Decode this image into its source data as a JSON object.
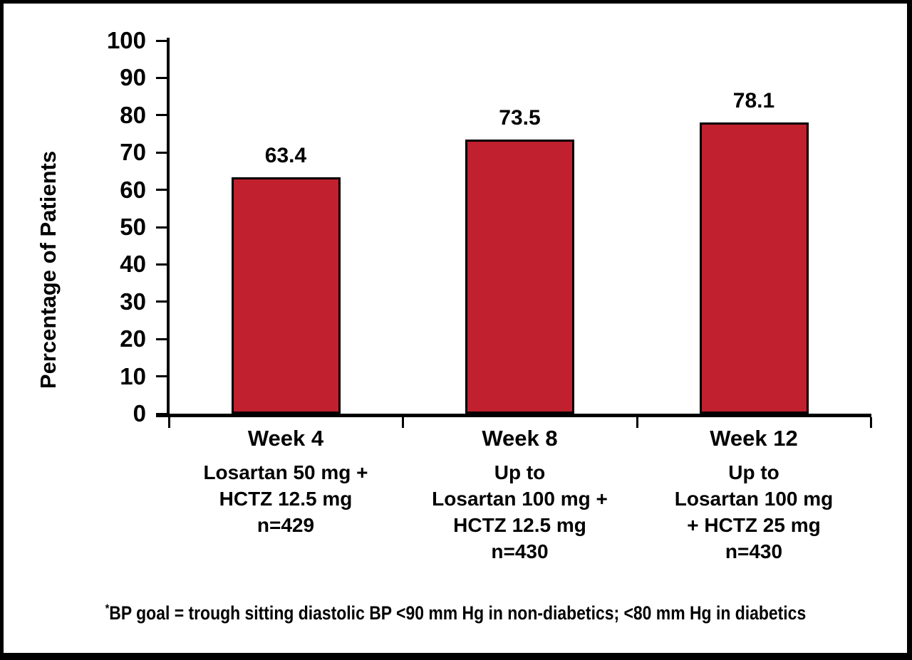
{
  "chart_data": {
    "type": "bar",
    "title": "",
    "xlabel": "",
    "ylabel": "Percentage of Patients",
    "ylim": [
      0,
      100
    ],
    "yticks": [
      0,
      10,
      20,
      30,
      40,
      50,
      60,
      70,
      80,
      90,
      100
    ],
    "grid": false,
    "legend": null,
    "bar_color": "#C1202F",
    "bar_border_color": "#000000",
    "categories": [
      "Week 4",
      "Week 8",
      "Week 12"
    ],
    "values": [
      63.4,
      73.5,
      78.1
    ],
    "bars": [
      {
        "week": "Week 4",
        "value": 63.4,
        "treatment_lines": [
          "Losartan 50 mg +",
          "HCTZ 12.5 mg"
        ],
        "n_label": "n=429"
      },
      {
        "week": "Week 8",
        "value": 73.5,
        "treatment_lines": [
          "Up to",
          "Losartan 100 mg +",
          "HCTZ 12.5 mg"
        ],
        "n_label": "n=430"
      },
      {
        "week": "Week 12",
        "value": 78.1,
        "treatment_lines": [
          "Up to",
          "Losartan 100 mg",
          "+ HCTZ 25 mg"
        ],
        "n_label": "n=430"
      }
    ],
    "footnote_marker": "*",
    "footnote_text": "BP goal = trough sitting diastolic BP <90 mm Hg in non-diabetics; <80 mm Hg in diabetics"
  }
}
